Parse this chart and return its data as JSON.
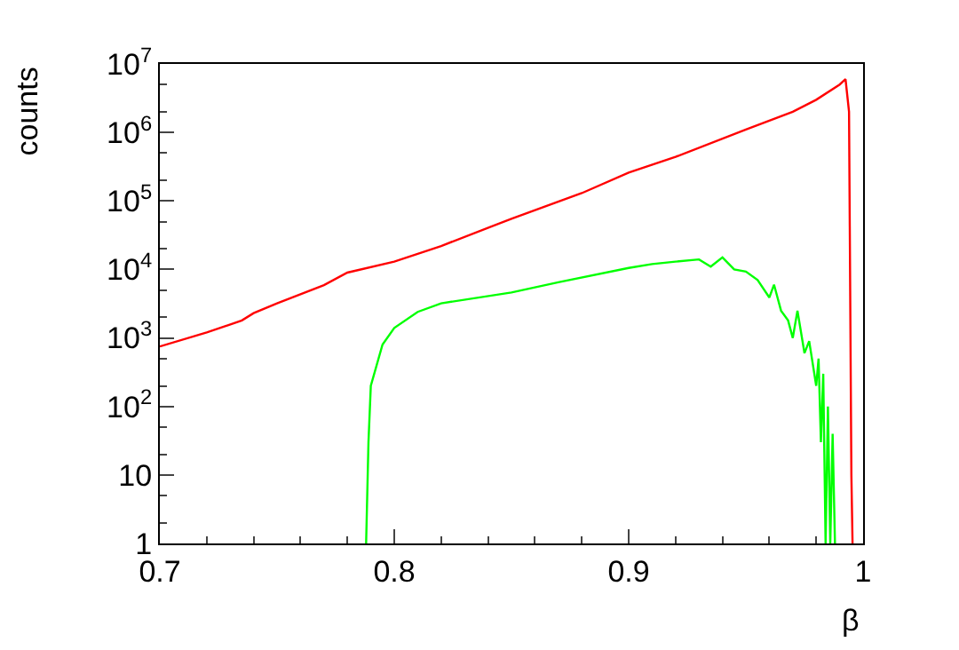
{
  "chart_data": {
    "type": "line",
    "xlabel": "β",
    "ylabel": "counts",
    "log": "y",
    "marker": "none",
    "line_style": "solid",
    "xlim": [
      0.7,
      1.0
    ],
    "xticks": [
      0.7,
      0.8,
      0.9,
      1
    ],
    "ylim": [
      1,
      10000000
    ],
    "yticks": [
      1,
      10,
      {
        "value": 100,
        "label": "10$^{2}$"
      },
      {
        "value": 1000,
        "label": "10$^{3}$"
      },
      {
        "value": 10000,
        "label": "10$^{4}$"
      },
      {
        "value": 100000,
        "label": "10$^{5}$"
      },
      {
        "value": 1000000,
        "label": "10$^{6}$"
      },
      {
        "value": 10000000,
        "label": "10$^{7}$"
      }
    ],
    "series": [
      {
        "color": "#ff0000",
        "x": [
          0.7,
          0.72,
          0.735,
          0.74,
          0.75,
          0.77,
          0.78,
          0.8,
          0.82,
          0.85,
          0.88,
          0.9,
          0.92,
          0.95,
          0.97,
          0.98,
          0.99,
          0.9925,
          0.994,
          0.995,
          0.9955
        ],
        "values": [
          750,
          1200,
          1800,
          2300,
          3200,
          5900,
          9000,
          13000,
          22000,
          55000,
          130000,
          260000,
          440000,
          1100000,
          2000000,
          3000000,
          5000000,
          6000000,
          2000000,
          10,
          1
        ]
      },
      {
        "color": "#00ff00",
        "x": [
          0.788,
          0.789,
          0.79,
          0.795,
          0.8,
          0.81,
          0.82,
          0.85,
          0.87,
          0.9,
          0.91,
          0.92,
          0.93,
          0.935,
          0.94,
          0.945,
          0.95,
          0.955,
          0.96,
          0.962,
          0.965,
          0.968,
          0.97,
          0.972,
          0.975,
          0.977,
          0.98,
          0.981,
          0.982,
          0.983,
          0.984,
          0.985,
          0.986,
          0.987,
          0.988
        ],
        "values": [
          1,
          30,
          200,
          800,
          1400,
          2400,
          3200,
          4600,
          6500,
          10500,
          12000,
          13000,
          14000,
          11000,
          15000,
          10000,
          9300,
          7000,
          3900,
          6000,
          2500,
          1800,
          1000,
          2500,
          600,
          900,
          200,
          500,
          30,
          300,
          1,
          100,
          1,
          40,
          1
        ]
      }
    ]
  }
}
